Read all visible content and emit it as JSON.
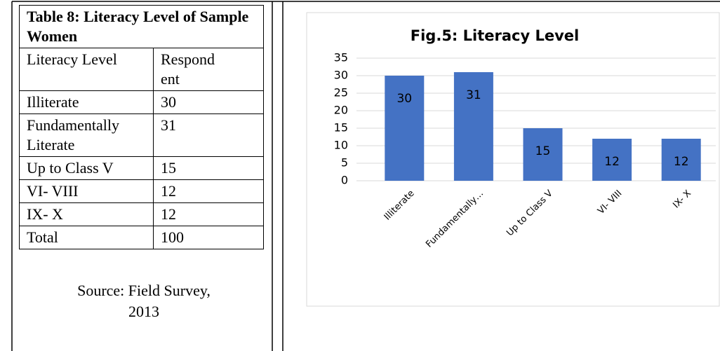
{
  "table": {
    "title": "Table 8: Literacy Level of Sample Women",
    "header": [
      "Literacy Level",
      "Respondent"
    ],
    "rows": [
      [
        "Illiterate",
        30
      ],
      [
        "Fundamentally Literate",
        31
      ],
      [
        "Up to Class V",
        15
      ],
      [
        "VI- VIII",
        12
      ],
      [
        "IX- X",
        12
      ],
      [
        "Total",
        100
      ]
    ],
    "source": "Source: Field Survey, 2013"
  },
  "chart_data": {
    "type": "bar",
    "title": "Fig.5: Literacy Level",
    "categories": [
      "Illiterate",
      "Fundamentally…",
      "Up to Class V",
      "VI- VIII",
      "IX- X"
    ],
    "values": [
      30,
      31,
      15,
      12,
      12
    ],
    "color": "#4472c4",
    "ylim": [
      0,
      35
    ],
    "yticks": [
      0,
      5,
      10,
      15,
      20,
      25,
      30,
      35
    ],
    "grid": true,
    "data_labels": true
  }
}
